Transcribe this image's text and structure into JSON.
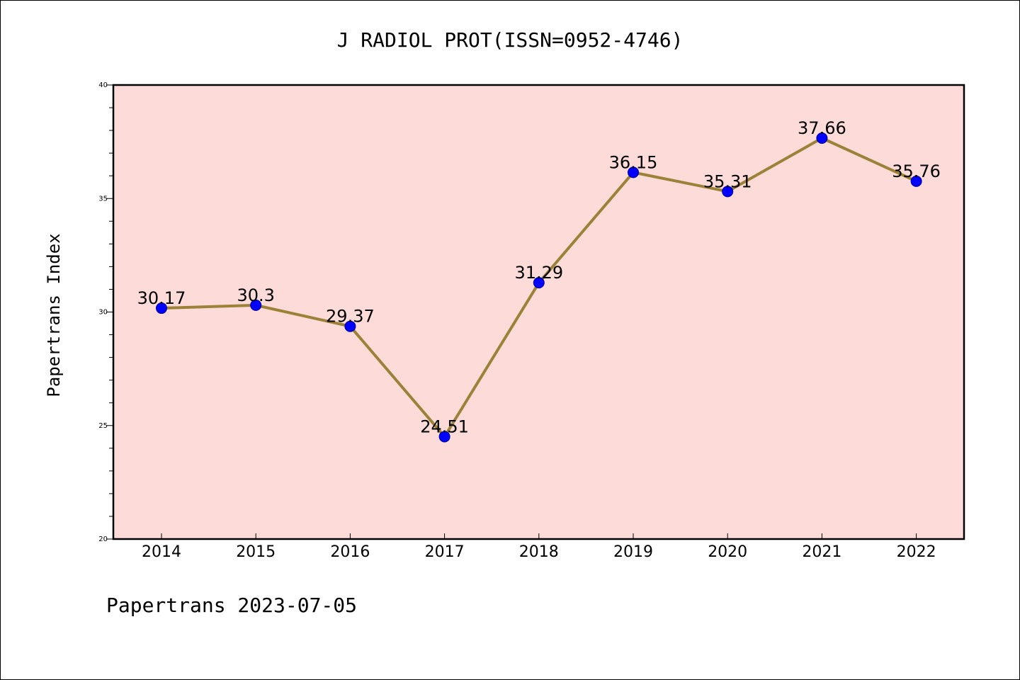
{
  "title": "J RADIOL PROT(ISSN=0952-4746)",
  "footer": "Papertrans 2023-07-05",
  "chart_data": {
    "type": "line",
    "title": "J RADIOL PROT(ISSN=0952-4746)",
    "xlabel": "",
    "ylabel": "Papertrans Index",
    "categories": [
      "2014",
      "2015",
      "2016",
      "2017",
      "2018",
      "2019",
      "2020",
      "2021",
      "2022"
    ],
    "values": [
      30.17,
      30.3,
      29.37,
      24.51,
      31.29,
      36.15,
      35.31,
      37.66,
      35.76
    ],
    "value_labels": [
      "30.17",
      "30.3",
      "29.37",
      "24.51",
      "31.29",
      "36.15",
      "35.31",
      "37.66",
      "35.76"
    ],
    "ylim": [
      20,
      40
    ],
    "yticks": [
      20,
      25,
      30,
      35,
      40
    ],
    "ytick_labels": [
      "20",
      "25",
      "30",
      "35",
      "40"
    ],
    "grid": false,
    "legend": "none",
    "colors": {
      "plot_background": "#fddbd8",
      "line": "#9c8238",
      "marker": "#0000ff",
      "axes": "#000000"
    }
  }
}
